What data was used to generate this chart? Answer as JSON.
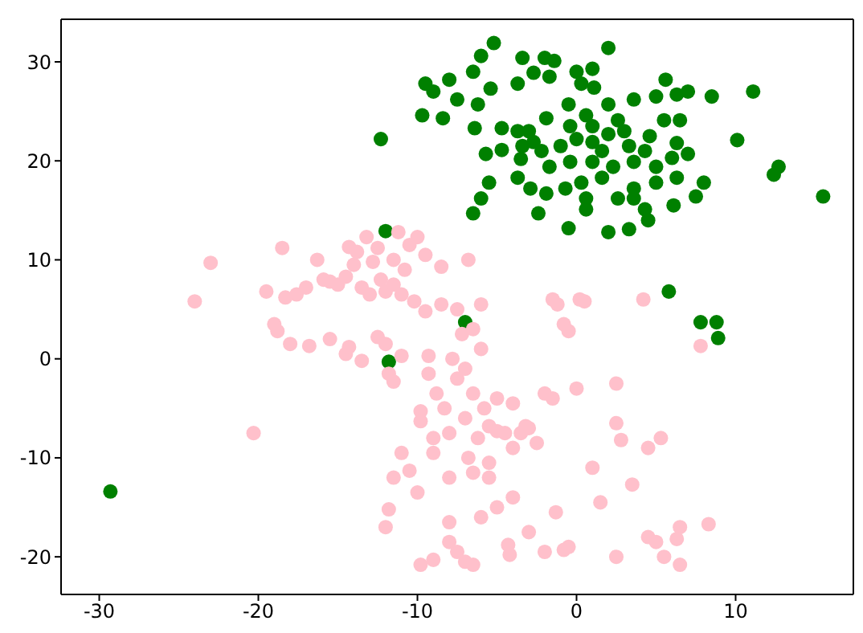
{
  "chart_data": {
    "type": "scatter",
    "xlim": [
      -32.4,
      17.4
    ],
    "ylim": [
      -23.8,
      34.3
    ],
    "xticks": [
      -30,
      -20,
      -10,
      0,
      10
    ],
    "yticks": [
      -20,
      -10,
      0,
      10,
      20,
      30
    ],
    "grid": false,
    "legend": false,
    "marker": "circle",
    "series": [
      {
        "color": "#008000",
        "x": [
          -5.2,
          2.0,
          -6.0,
          -3.4,
          -2.0,
          -1.4,
          -9.5,
          -8.0,
          -9.0,
          -6.5,
          -5.4,
          -3.7,
          -2.7,
          -1.7,
          0,
          1.0,
          0.3,
          1.1,
          5.6,
          7.0,
          8.5,
          11.1,
          -9.7,
          -8.4,
          -7.5,
          -6.2,
          -6.4,
          -4.7,
          -3.0,
          -1.9,
          -0.5,
          0.6,
          2.0,
          3.6,
          5.0,
          6.3,
          5.5,
          6.5,
          -5.7,
          -4.7,
          -3.4,
          -3.5,
          -2.2,
          -1.0,
          0,
          1.0,
          2.0,
          2.6,
          3.3,
          4.3,
          6.3,
          7.0,
          10.1,
          -5.5,
          -3.7,
          -2.9,
          -1.9,
          -0.7,
          0.3,
          1.6,
          2.6,
          3.6,
          5.0,
          6.3,
          8.0,
          6.1,
          7.5,
          -6.0,
          -6.5,
          -2.4,
          -0.5,
          0.6,
          2.0,
          3.3,
          4.5,
          1.0,
          2.3,
          -1.7,
          -0.4,
          3.6,
          5.0,
          1.6,
          -2.7,
          -3.7,
          3.0,
          4.6,
          6.0,
          3.6,
          4.3,
          0.6,
          12.7,
          12.4,
          15.5,
          -0.4,
          1.0,
          -29.3,
          -12.3,
          -12.0,
          -11.8,
          -7.0,
          5.8,
          7.8,
          8.8,
          8.9
        ],
        "values": [
          31.9,
          31.4,
          30.6,
          30.4,
          30.4,
          30.1,
          27.8,
          28.2,
          27.0,
          29.0,
          27.3,
          27.8,
          28.9,
          28.5,
          29.0,
          29.3,
          27.8,
          27.4,
          28.2,
          27.0,
          26.5,
          27.0,
          24.6,
          24.3,
          26.2,
          25.7,
          23.3,
          23.3,
          23.0,
          24.3,
          25.7,
          24.6,
          25.7,
          26.2,
          26.5,
          26.7,
          24.1,
          24.1,
          20.7,
          21.1,
          21.5,
          20.2,
          21.0,
          21.5,
          22.2,
          21.9,
          22.7,
          24.1,
          21.5,
          21.0,
          21.8,
          20.7,
          22.1,
          17.8,
          18.3,
          17.2,
          16.7,
          17.2,
          17.8,
          18.3,
          16.2,
          17.2,
          17.8,
          18.3,
          17.8,
          15.5,
          16.4,
          16.2,
          14.7,
          14.7,
          13.2,
          15.1,
          12.8,
          13.1,
          14.0,
          19.9,
          19.4,
          19.4,
          19.9,
          19.9,
          19.4,
          21.0,
          21.9,
          23.0,
          23.0,
          22.5,
          20.3,
          16.2,
          15.1,
          16.2,
          19.4,
          18.6,
          16.4,
          23.5,
          23.5,
          -13.4,
          22.2,
          12.9,
          -0.3,
          3.7,
          6.8,
          3.7,
          3.7,
          2.1
        ]
      },
      {
        "color": "#ffc0cb",
        "x": [
          -24,
          -23,
          -20.3,
          -19.5,
          -19,
          -18.8,
          -18.5,
          -18.3,
          -18,
          -17.6,
          -17,
          -16.8,
          -16.3,
          -15.9,
          -15.5,
          -15.5,
          -15,
          -14.5,
          -14.5,
          -14.3,
          -14.3,
          -14,
          -13.8,
          -13.5,
          -13.5,
          -13.2,
          -13,
          -12.8,
          -12.5,
          -12.5,
          -12.3,
          -12,
          -12,
          -11.8,
          -11.5,
          -11.5,
          -11.5,
          -11.2,
          -11,
          -11,
          -10.8,
          -10.5,
          -10.2,
          -10,
          -9.8,
          -9.8,
          -9.5,
          -9.5,
          -9.3,
          -9.3,
          -9,
          -9,
          -8.8,
          -8.5,
          -8.5,
          -8.3,
          -8,
          -8,
          -7.8,
          -7.5,
          -7.5,
          -7.2,
          -7,
          -7,
          -6.8,
          -6.8,
          -6.5,
          -6.5,
          -6.5,
          -6.2,
          -6,
          -6,
          -5.8,
          -5.5,
          -5.5,
          -5,
          -5,
          -4.5,
          -4,
          -4,
          -3.5,
          -3,
          -12,
          -11.8,
          -11.5,
          -11,
          -10.5,
          -10,
          -9.8,
          -9,
          -8,
          -8,
          -7.5,
          -7,
          -6.5,
          -6,
          -5,
          -4.3,
          -4.2,
          -3,
          -2,
          -1.3,
          -0.8,
          -0.5,
          -1.5,
          -1.2,
          -0.8,
          -0.5,
          0.2,
          0.5,
          1,
          1.5,
          2.5,
          2.5,
          2.8,
          2.5,
          4.5,
          4.2,
          4.5,
          5,
          5.3,
          5.5,
          6.5,
          6.3,
          6.5,
          8.3,
          7.8,
          -2.5,
          -3.2,
          -2,
          -4,
          -5.5,
          3.5,
          0,
          -1.5
        ],
        "values": [
          5.8,
          9.7,
          -7.5,
          6.8,
          3.5,
          2.8,
          11.2,
          6.2,
          1.5,
          6.5,
          7.2,
          1.3,
          10,
          8,
          2,
          7.8,
          7.5,
          8.3,
          0.5,
          1.2,
          11.3,
          9.5,
          10.8,
          -0.2,
          7.2,
          12.3,
          6.5,
          9.8,
          2.2,
          11.2,
          8,
          6.8,
          1.5,
          -1.5,
          10,
          -2.3,
          7.5,
          12.8,
          6.5,
          0.3,
          9,
          11.5,
          5.8,
          12.3,
          -5.3,
          -6.3,
          4.8,
          10.5,
          0.3,
          -1.5,
          -8,
          -9.5,
          -3.5,
          9.3,
          5.5,
          -5,
          -7.5,
          -12,
          0,
          -2,
          5,
          2.5,
          -1,
          -6,
          10,
          -10,
          3,
          -3.5,
          -11.5,
          -8,
          1,
          5.5,
          -5,
          -12,
          -6.8,
          -7.3,
          -4,
          -7.5,
          -9,
          -4.5,
          -7.5,
          -7,
          -17,
          -15.2,
          -12,
          -9.5,
          -11.3,
          -13.5,
          -20.8,
          -20.3,
          -16.5,
          -18.5,
          -19.5,
          -20.5,
          -20.8,
          -16,
          -15,
          -18.8,
          -19.8,
          -17.5,
          -19.5,
          -15.5,
          -19.3,
          -19,
          6,
          5.5,
          3.5,
          2.8,
          6,
          5.8,
          -11,
          -14.5,
          -6.5,
          -2.5,
          -8.2,
          -20,
          -9,
          6,
          -18,
          -18.5,
          -8,
          -20,
          -17,
          -18.2,
          -20.8,
          -16.7,
          1.3,
          -8.5,
          -6.8,
          -3.5,
          -14,
          -10.5,
          -12.7,
          -3,
          -4
        ]
      }
    ]
  }
}
